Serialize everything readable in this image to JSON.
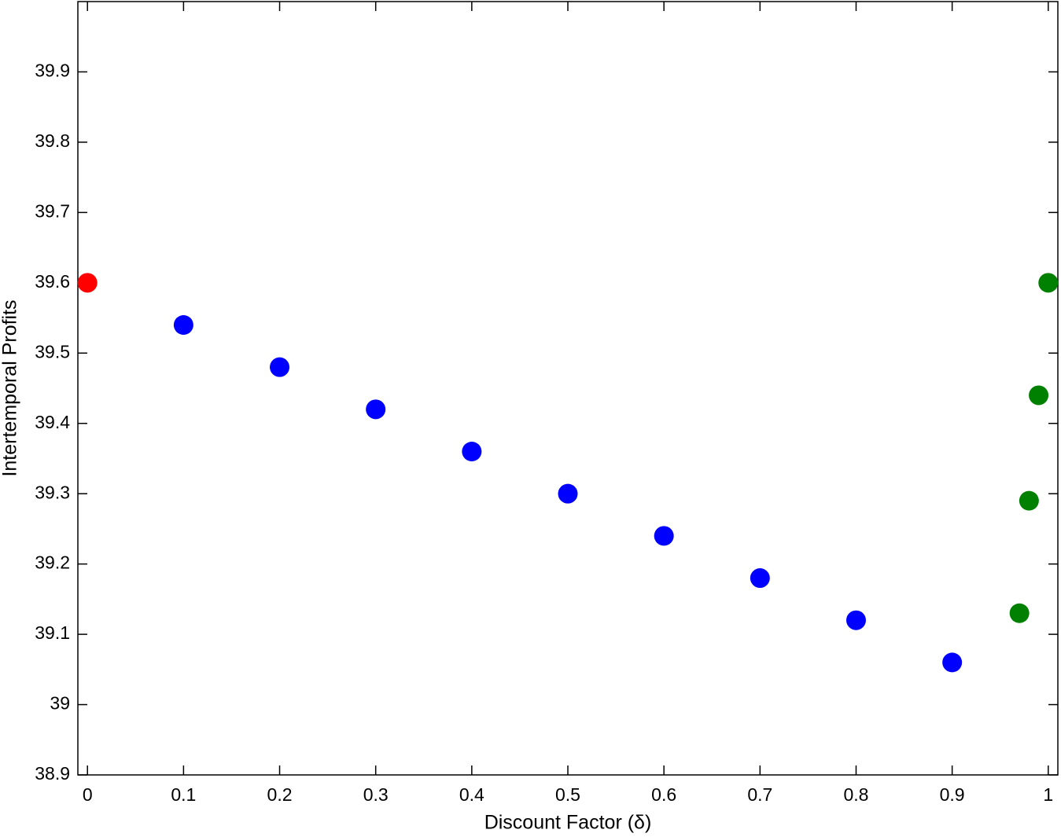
{
  "chart_data": {
    "type": "scatter",
    "x_label": "Discount Factor (δ)",
    "y_label": "Intertemporal Profits",
    "xlim": [
      -0.01,
      1.01
    ],
    "ylim": [
      38.9,
      40.0
    ],
    "xticks": [
      0,
      0.1,
      0.2,
      0.3,
      0.4,
      0.5,
      0.6,
      0.7,
      0.8,
      0.9,
      1
    ],
    "yticks": [
      38.9,
      39,
      39.1,
      39.2,
      39.3,
      39.4,
      39.5,
      39.6,
      39.7,
      39.8,
      39.9
    ],
    "grid": false,
    "series": [
      {
        "color": "#ff0000",
        "x": [
          0
        ],
        "values": [
          39.6
        ]
      },
      {
        "color": "#0000ff",
        "x": [
          0.1,
          0.2,
          0.3,
          0.4,
          0.5,
          0.6,
          0.7,
          0.8,
          0.9
        ],
        "values": [
          39.54,
          39.48,
          39.42,
          39.36,
          39.3,
          39.24,
          39.18,
          39.12,
          39.06
        ]
      },
      {
        "color": "#008000",
        "x": [
          0.97,
          0.98,
          0.99,
          1
        ],
        "values": [
          39.13,
          39.29,
          39.44,
          39.6
        ]
      }
    ]
  }
}
